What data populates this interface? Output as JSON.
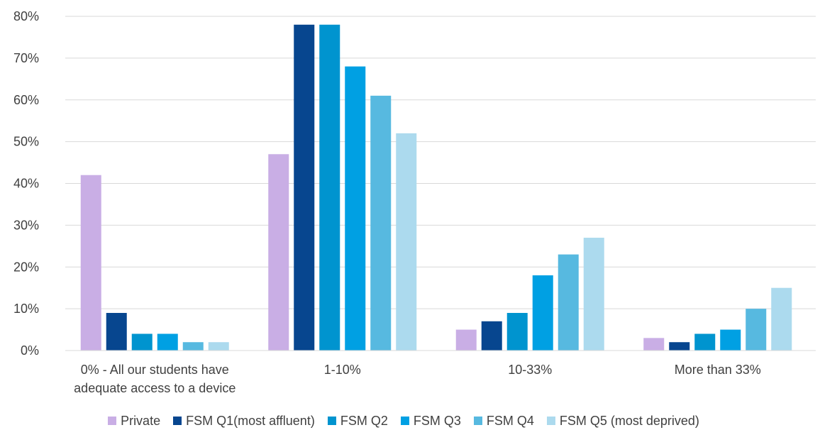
{
  "chart_data": {
    "type": "bar",
    "title": "",
    "xlabel": "",
    "ylabel": "",
    "ylim": [
      0,
      80
    ],
    "yticks": [
      "0%",
      "10%",
      "20%",
      "30%",
      "40%",
      "50%",
      "60%",
      "70%",
      "80%"
    ],
    "grid": true,
    "legend_position": "bottom",
    "categories": [
      [
        "0% - All our students have",
        "adequate access to a device"
      ],
      [
        "1-10%"
      ],
      [
        "10-33%"
      ],
      [
        "More than 33%"
      ]
    ],
    "series": [
      {
        "name": "Private",
        "color": "#c9aee5",
        "values": [
          42,
          47,
          5,
          3
        ]
      },
      {
        "name": "FSM Q1(most affluent)",
        "color": "#07468f",
        "values": [
          9,
          78,
          7,
          2
        ]
      },
      {
        "name": "FSM Q2",
        "color": "#0094cf",
        "values": [
          4,
          78,
          9,
          4
        ]
      },
      {
        "name": "FSM Q3",
        "color": "#00a0e3",
        "values": [
          4,
          68,
          18,
          5
        ]
      },
      {
        "name": "FSM Q4",
        "color": "#57b9e0",
        "values": [
          2,
          61,
          23,
          10
        ]
      },
      {
        "name": "FSM Q5 (most deprived)",
        "color": "#acdaee",
        "values": [
          2,
          52,
          27,
          15
        ]
      }
    ]
  }
}
